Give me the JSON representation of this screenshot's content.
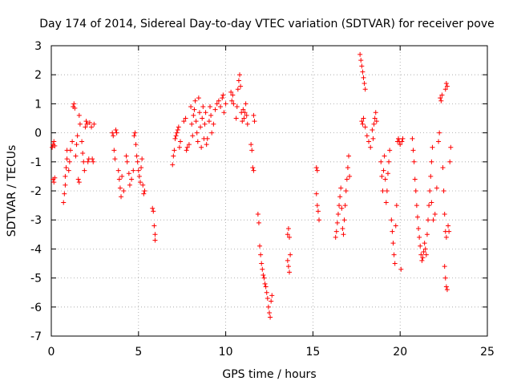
{
  "chart_data": {
    "type": "scatter",
    "title": "Day 174 of 2014, Sidereal Day-to-day VTEC variation (SDTVAR) for receiver pove",
    "xlabel": "GPS time / hours",
    "ylabel": "SDTVAR / TECUs",
    "xlim": [
      0,
      25
    ],
    "ylim": [
      -7,
      3
    ],
    "xticks": [
      "0",
      "5",
      "10",
      "15",
      "20",
      "25"
    ],
    "yticks": [
      "-7",
      "-6",
      "-5",
      "-4",
      "-3",
      "-2",
      "-1",
      "0",
      "1",
      "2",
      "3"
    ],
    "grid": true,
    "marker": "plus",
    "color": "#ff0000",
    "series": [
      {
        "name": "SDTVAR",
        "points": [
          [
            0.05,
            -0.5
          ],
          [
            0.1,
            -0.4
          ],
          [
            0.15,
            -0.3
          ],
          [
            0.2,
            -0.45
          ],
          [
            0.1,
            -1.6
          ],
          [
            0.15,
            -1.7
          ],
          [
            0.2,
            -1.55
          ],
          [
            0.7,
            -2.4
          ],
          [
            0.75,
            -2.1
          ],
          [
            0.8,
            -1.8
          ],
          [
            0.8,
            -1.5
          ],
          [
            0.85,
            -1.2
          ],
          [
            0.9,
            -0.9
          ],
          [
            0.9,
            -0.6
          ],
          [
            1.0,
            -1.3
          ],
          [
            1.05,
            -1.0
          ],
          [
            1.1,
            -0.6
          ],
          [
            1.2,
            -0.3
          ],
          [
            1.25,
            0.9
          ],
          [
            1.3,
            1.0
          ],
          [
            1.35,
            0.85
          ],
          [
            1.4,
            -0.8
          ],
          [
            1.45,
            -0.4
          ],
          [
            1.5,
            -0.1
          ],
          [
            1.55,
            -1.6
          ],
          [
            1.6,
            -1.7
          ],
          [
            1.6,
            0.6
          ],
          [
            1.65,
            0.3
          ],
          [
            1.75,
            -0.3
          ],
          [
            1.8,
            -0.7
          ],
          [
            1.85,
            -1.0
          ],
          [
            1.9,
            -1.3
          ],
          [
            1.95,
            0.2
          ],
          [
            2.0,
            0.4
          ],
          [
            2.05,
            0.3
          ],
          [
            2.1,
            -1.0
          ],
          [
            2.15,
            -0.9
          ],
          [
            2.2,
            0.35
          ],
          [
            2.3,
            0.2
          ],
          [
            2.35,
            -0.9
          ],
          [
            2.4,
            -1.0
          ],
          [
            2.45,
            0.3
          ],
          [
            3.5,
            0.0
          ],
          [
            3.55,
            -0.1
          ],
          [
            3.6,
            -0.6
          ],
          [
            3.65,
            -0.9
          ],
          [
            3.7,
            0.1
          ],
          [
            3.75,
            0.0
          ],
          [
            3.85,
            -1.3
          ],
          [
            3.9,
            -1.6
          ],
          [
            3.95,
            -1.9
          ],
          [
            4.0,
            -2.2
          ],
          [
            4.05,
            -1.5
          ],
          [
            4.15,
            -2.0
          ],
          [
            4.3,
            -0.8
          ],
          [
            4.35,
            -1.0
          ],
          [
            4.45,
            -1.4
          ],
          [
            4.5,
            -1.8
          ],
          [
            4.6,
            -1.6
          ],
          [
            4.7,
            -1.3
          ],
          [
            4.75,
            -0.1
          ],
          [
            4.8,
            0.0
          ],
          [
            4.85,
            -0.4
          ],
          [
            4.9,
            -0.8
          ],
          [
            4.95,
            -1.0
          ],
          [
            5.0,
            -1.3
          ],
          [
            5.05,
            -1.5
          ],
          [
            5.1,
            -1.7
          ],
          [
            5.15,
            -1.2
          ],
          [
            5.2,
            -0.9
          ],
          [
            5.25,
            -1.8
          ],
          [
            5.3,
            -2.1
          ],
          [
            5.35,
            -2.0
          ],
          [
            5.8,
            -2.6
          ],
          [
            5.85,
            -2.7
          ],
          [
            5.9,
            -3.2
          ],
          [
            5.95,
            -3.5
          ],
          [
            5.95,
            -3.7
          ],
          [
            6.95,
            -1.1
          ],
          [
            7.0,
            -0.8
          ],
          [
            7.05,
            -0.6
          ],
          [
            7.1,
            -0.2
          ],
          [
            7.15,
            -0.1
          ],
          [
            7.2,
            0.0
          ],
          [
            7.25,
            0.1
          ],
          [
            7.3,
            0.2
          ],
          [
            7.35,
            -0.5
          ],
          [
            7.4,
            -0.3
          ],
          [
            7.6,
            0.4
          ],
          [
            7.7,
            0.5
          ],
          [
            7.75,
            -0.6
          ],
          [
            7.8,
            -0.5
          ],
          [
            7.9,
            -0.4
          ],
          [
            8.0,
            0.9
          ],
          [
            8.05,
            0.3
          ],
          [
            8.1,
            -0.1
          ],
          [
            8.15,
            0.6
          ],
          [
            8.2,
            0.8
          ],
          [
            8.25,
            1.1
          ],
          [
            8.3,
            0.4
          ],
          [
            8.35,
            0.0
          ],
          [
            8.4,
            -0.3
          ],
          [
            8.45,
            1.2
          ],
          [
            8.5,
            0.7
          ],
          [
            8.55,
            0.2
          ],
          [
            8.6,
            -0.5
          ],
          [
            8.65,
            0.5
          ],
          [
            8.7,
            0.9
          ],
          [
            8.75,
            -0.2
          ],
          [
            8.8,
            0.3
          ],
          [
            8.85,
            0.7
          ],
          [
            8.9,
            -0.4
          ],
          [
            8.95,
            -0.2
          ],
          [
            9.05,
            0.4
          ],
          [
            9.1,
            0.9
          ],
          [
            9.15,
            0.6
          ],
          [
            9.2,
            0.0
          ],
          [
            9.3,
            0.3
          ],
          [
            9.4,
            0.8
          ],
          [
            9.5,
            1.0
          ],
          [
            9.6,
            1.1
          ],
          [
            9.7,
            0.9
          ],
          [
            9.8,
            1.2
          ],
          [
            9.85,
            1.3
          ],
          [
            9.9,
            0.7
          ],
          [
            10.0,
            1.0
          ],
          [
            10.3,
            1.4
          ],
          [
            10.35,
            1.1
          ],
          [
            10.4,
            1.3
          ],
          [
            10.45,
            1.0
          ],
          [
            10.6,
            0.5
          ],
          [
            10.65,
            0.9
          ],
          [
            10.7,
            1.5
          ],
          [
            10.75,
            1.8
          ],
          [
            10.8,
            2.0
          ],
          [
            10.85,
            1.6
          ],
          [
            10.9,
            0.7
          ],
          [
            10.95,
            0.4
          ],
          [
            11.0,
            0.8
          ],
          [
            11.05,
            0.5
          ],
          [
            11.1,
            0.7
          ],
          [
            11.15,
            1.0
          ],
          [
            11.2,
            0.6
          ],
          [
            11.25,
            0.3
          ],
          [
            11.45,
            -0.4
          ],
          [
            11.5,
            -0.6
          ],
          [
            11.55,
            -1.2
          ],
          [
            11.6,
            -1.3
          ],
          [
            11.6,
            0.6
          ],
          [
            11.65,
            0.4
          ],
          [
            11.85,
            -2.8
          ],
          [
            11.9,
            -3.1
          ],
          [
            11.95,
            -3.9
          ],
          [
            12.0,
            -4.2
          ],
          [
            12.05,
            -4.5
          ],
          [
            12.1,
            -4.7
          ],
          [
            12.15,
            -4.9
          ],
          [
            12.2,
            -5.0
          ],
          [
            12.25,
            -5.2
          ],
          [
            12.3,
            -5.3
          ],
          [
            12.35,
            -5.5
          ],
          [
            12.4,
            -5.7
          ],
          [
            12.45,
            -6.0
          ],
          [
            12.5,
            -6.2
          ],
          [
            12.55,
            -6.35
          ],
          [
            12.6,
            -5.8
          ],
          [
            12.65,
            -5.6
          ],
          [
            13.55,
            -3.5
          ],
          [
            13.6,
            -3.3
          ],
          [
            13.65,
            -3.6
          ],
          [
            13.55,
            -4.4
          ],
          [
            13.6,
            -4.6
          ],
          [
            13.65,
            -4.8
          ],
          [
            13.7,
            -4.2
          ],
          [
            15.2,
            -1.2
          ],
          [
            15.25,
            -1.3
          ],
          [
            15.2,
            -2.1
          ],
          [
            15.25,
            -2.5
          ],
          [
            15.3,
            -2.7
          ],
          [
            15.35,
            -3.0
          ],
          [
            16.3,
            -3.6
          ],
          [
            16.35,
            -3.4
          ],
          [
            16.4,
            -3.1
          ],
          [
            16.45,
            -2.8
          ],
          [
            16.5,
            -2.5
          ],
          [
            16.55,
            -2.2
          ],
          [
            16.6,
            -1.9
          ],
          [
            16.65,
            -2.6
          ],
          [
            16.7,
            -3.3
          ],
          [
            16.75,
            -3.5
          ],
          [
            16.8,
            -3.0
          ],
          [
            16.85,
            -2.5
          ],
          [
            16.9,
            -2.0
          ],
          [
            16.95,
            -1.6
          ],
          [
            17.0,
            -1.2
          ],
          [
            17.05,
            -0.8
          ],
          [
            17.1,
            -1.5
          ],
          [
            17.7,
            2.7
          ],
          [
            17.75,
            2.5
          ],
          [
            17.8,
            2.3
          ],
          [
            17.85,
            2.1
          ],
          [
            17.9,
            1.9
          ],
          [
            17.95,
            1.7
          ],
          [
            18.0,
            1.5
          ],
          [
            17.8,
            0.4
          ],
          [
            17.85,
            0.3
          ],
          [
            17.9,
            0.5
          ],
          [
            18.0,
            0.2
          ],
          [
            18.1,
            -0.1
          ],
          [
            18.2,
            -0.3
          ],
          [
            18.3,
            -0.5
          ],
          [
            18.4,
            0.1
          ],
          [
            18.45,
            -0.2
          ],
          [
            18.5,
            0.3
          ],
          [
            18.55,
            0.5
          ],
          [
            18.6,
            0.7
          ],
          [
            18.65,
            0.4
          ],
          [
            18.9,
            -1.0
          ],
          [
            18.95,
            -1.5
          ],
          [
            19.0,
            -2.0
          ],
          [
            19.05,
            -1.3
          ],
          [
            19.1,
            -0.8
          ],
          [
            19.15,
            -1.6
          ],
          [
            19.2,
            -2.4
          ],
          [
            19.25,
            -2.0
          ],
          [
            19.3,
            -1.4
          ],
          [
            19.35,
            -1.0
          ],
          [
            19.4,
            -0.6
          ],
          [
            19.5,
            -3.0
          ],
          [
            19.55,
            -3.4
          ],
          [
            19.6,
            -3.8
          ],
          [
            19.65,
            -4.2
          ],
          [
            19.7,
            -4.5
          ],
          [
            19.75,
            -3.2
          ],
          [
            19.8,
            -2.5
          ],
          [
            19.85,
            -0.3
          ],
          [
            19.9,
            -0.2
          ],
          [
            19.95,
            -0.3
          ],
          [
            20.0,
            -0.4
          ],
          [
            20.05,
            -4.7
          ],
          [
            20.1,
            -0.3
          ],
          [
            20.15,
            -0.2
          ],
          [
            20.7,
            -0.2
          ],
          [
            20.75,
            -0.6
          ],
          [
            20.8,
            -1.0
          ],
          [
            20.85,
            -1.6
          ],
          [
            20.9,
            -2.0
          ],
          [
            20.95,
            -2.5
          ],
          [
            21.0,
            -2.9
          ],
          [
            21.05,
            -3.3
          ],
          [
            21.1,
            -3.6
          ],
          [
            21.15,
            -3.9
          ],
          [
            21.2,
            -4.2
          ],
          [
            21.25,
            -4.4
          ],
          [
            21.3,
            -4.3
          ],
          [
            21.35,
            -4.1
          ],
          [
            21.4,
            -3.8
          ],
          [
            21.45,
            -4.0
          ],
          [
            21.5,
            -4.2
          ],
          [
            21.55,
            -3.5
          ],
          [
            21.6,
            -3.0
          ],
          [
            21.65,
            -2.5
          ],
          [
            21.7,
            -2.0
          ],
          [
            21.75,
            -1.5
          ],
          [
            21.8,
            -1.0
          ],
          [
            21.85,
            -0.5
          ],
          [
            21.8,
            -2.4
          ],
          [
            21.9,
            -3.0
          ],
          [
            22.0,
            -2.8
          ],
          [
            22.1,
            -1.9
          ],
          [
            22.2,
            -0.3
          ],
          [
            22.25,
            0.0
          ],
          [
            22.3,
            1.2
          ],
          [
            22.35,
            1.1
          ],
          [
            22.4,
            1.3
          ],
          [
            22.45,
            -1.2
          ],
          [
            22.5,
            -2.0
          ],
          [
            22.55,
            -2.8
          ],
          [
            22.6,
            -3.4
          ],
          [
            22.65,
            -3.6
          ],
          [
            22.6,
            1.5
          ],
          [
            22.65,
            1.7
          ],
          [
            22.7,
            1.6
          ],
          [
            22.55,
            -4.6
          ],
          [
            22.6,
            -5.0
          ],
          [
            22.65,
            -5.3
          ],
          [
            22.7,
            -5.4
          ],
          [
            22.75,
            -3.2
          ],
          [
            22.8,
            -3.4
          ],
          [
            22.85,
            -1.0
          ],
          [
            22.9,
            -0.5
          ]
        ]
      }
    ]
  }
}
